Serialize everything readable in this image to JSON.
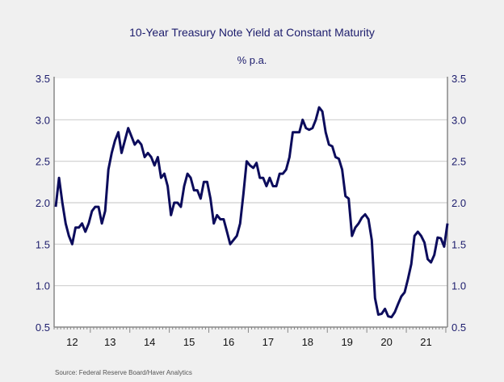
{
  "chart_data": {
    "type": "line",
    "title": "10-Year Treasury Note Yield at Constant Maturity",
    "subtitle": "% p.a.",
    "source": "Source:  Federal Reserve Board/Haver Analytics",
    "xlim": [
      "2012-02",
      "2022-01"
    ],
    "ylim": [
      0.5,
      3.5
    ],
    "yticks": [
      0.5,
      1.0,
      1.5,
      2.0,
      2.5,
      3.0,
      3.5
    ],
    "ytick_labels": [
      "0.5",
      "1.0",
      "1.5",
      "2.0",
      "2.5",
      "3.0",
      "3.5"
    ],
    "xtick_labels": [
      "12",
      "13",
      "14",
      "15",
      "16",
      "17",
      "18",
      "19",
      "20",
      "21"
    ],
    "grid": true,
    "dual_y_axis": true,
    "line_color": "#0c0c5c",
    "text_color": "#1c1c6c",
    "series": [
      {
        "x": [
          "2012-02",
          "2012-03",
          "2012-04",
          "2012-05",
          "2012-06",
          "2012-07",
          "2012-08",
          "2012-09",
          "2012-10",
          "2012-11",
          "2012-12",
          "2013-01",
          "2013-02",
          "2013-03",
          "2013-04",
          "2013-05",
          "2013-06",
          "2013-07",
          "2013-08",
          "2013-09",
          "2013-10",
          "2013-11",
          "2013-12",
          "2014-01",
          "2014-02",
          "2014-03",
          "2014-04",
          "2014-05",
          "2014-06",
          "2014-07",
          "2014-08",
          "2014-09",
          "2014-10",
          "2014-11",
          "2014-12",
          "2015-01",
          "2015-02",
          "2015-03",
          "2015-04",
          "2015-05",
          "2015-06",
          "2015-07",
          "2015-08",
          "2015-09",
          "2015-10",
          "2015-11",
          "2015-12",
          "2016-01",
          "2016-02",
          "2016-03",
          "2016-04",
          "2016-05",
          "2016-06",
          "2016-07",
          "2016-08",
          "2016-09",
          "2016-10",
          "2016-11",
          "2016-12",
          "2017-01",
          "2017-02",
          "2017-03",
          "2017-04",
          "2017-05",
          "2017-06",
          "2017-07",
          "2017-08",
          "2017-09",
          "2017-10",
          "2017-11",
          "2017-12",
          "2018-01",
          "2018-02",
          "2018-03",
          "2018-04",
          "2018-05",
          "2018-06",
          "2018-07",
          "2018-08",
          "2018-09",
          "2018-10",
          "2018-11",
          "2018-12",
          "2019-01",
          "2019-02",
          "2019-03",
          "2019-04",
          "2019-05",
          "2019-06",
          "2019-07",
          "2019-08",
          "2019-09",
          "2019-10",
          "2019-11",
          "2019-12",
          "2020-01",
          "2020-02",
          "2020-03",
          "2020-04",
          "2020-05",
          "2020-06",
          "2020-07",
          "2020-08",
          "2020-09",
          "2020-10",
          "2020-11",
          "2020-12",
          "2021-01",
          "2021-02",
          "2021-03",
          "2021-04",
          "2021-05",
          "2021-06",
          "2021-07",
          "2021-08",
          "2021-09",
          "2021-10",
          "2021-11",
          "2021-12",
          "2022-01"
        ],
        "values": [
          1.95,
          2.3,
          2.0,
          1.75,
          1.6,
          1.5,
          1.7,
          1.7,
          1.75,
          1.65,
          1.75,
          1.9,
          1.95,
          1.95,
          1.75,
          1.9,
          2.4,
          2.6,
          2.75,
          2.85,
          2.6,
          2.75,
          2.9,
          2.8,
          2.7,
          2.75,
          2.7,
          2.55,
          2.6,
          2.55,
          2.45,
          2.55,
          2.3,
          2.35,
          2.2,
          1.85,
          2.0,
          2.0,
          1.95,
          2.2,
          2.35,
          2.3,
          2.15,
          2.15,
          2.05,
          2.25,
          2.25,
          2.05,
          1.75,
          1.85,
          1.8,
          1.8,
          1.65,
          1.5,
          1.55,
          1.6,
          1.75,
          2.1,
          2.5,
          2.45,
          2.42,
          2.48,
          2.3,
          2.3,
          2.2,
          2.3,
          2.2,
          2.2,
          2.35,
          2.35,
          2.4,
          2.55,
          2.85,
          2.85,
          2.85,
          3.0,
          2.9,
          2.88,
          2.9,
          3.0,
          3.15,
          3.1,
          2.85,
          2.7,
          2.68,
          2.55,
          2.53,
          2.4,
          2.08,
          2.05,
          1.6,
          1.7,
          1.75,
          1.82,
          1.86,
          1.8,
          1.55,
          0.85,
          0.65,
          0.66,
          0.72,
          0.63,
          0.62,
          0.68,
          0.78,
          0.87,
          0.92,
          1.08,
          1.26,
          1.6,
          1.65,
          1.6,
          1.52,
          1.32,
          1.28,
          1.37,
          1.58,
          1.57,
          1.47,
          1.75
        ]
      }
    ]
  }
}
